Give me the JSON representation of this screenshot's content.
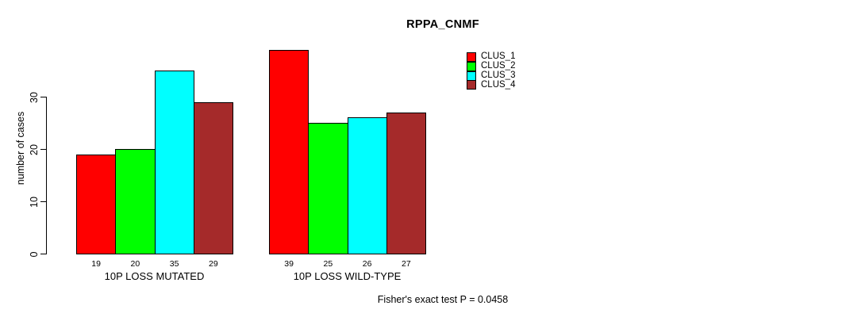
{
  "chart_data": {
    "type": "bar",
    "title": "RPPA_CNMF",
    "ylabel": "number of cases",
    "xlabel": "",
    "footer": "Fisher's exact test P = 0.0458",
    "yticks": [
      0,
      10,
      20,
      30
    ],
    "ylim": [
      0,
      39.5
    ],
    "grid": false,
    "legend_position": "top-right",
    "bar_value_labels_shown": true,
    "series": [
      {
        "name": "CLUS_1",
        "color": "#FF0000"
      },
      {
        "name": "CLUS_2",
        "color": "#00FF00"
      },
      {
        "name": "CLUS_3",
        "color": "#00FFFF"
      },
      {
        "name": "CLUS_4",
        "color": "#A52A2A"
      }
    ],
    "groups": [
      {
        "label": "10P LOSS MUTATED",
        "values": [
          19,
          20,
          35,
          29
        ]
      },
      {
        "label": "10P LOSS WILD-TYPE",
        "values": [
          39,
          25,
          26,
          27
        ]
      }
    ],
    "colors": {
      "background": "#FFFFFF",
      "axis": "#000000",
      "text": "#000000"
    }
  }
}
